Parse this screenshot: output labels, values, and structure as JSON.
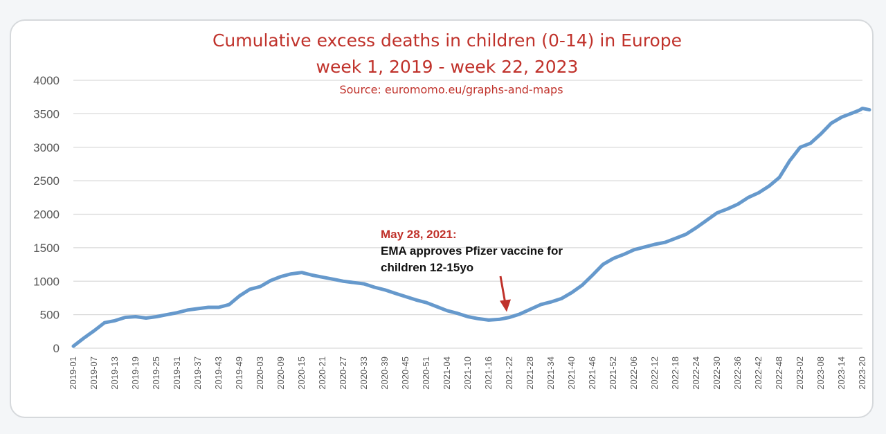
{
  "chart_data": {
    "type": "line",
    "title": "Cumulative excess deaths in children (0-14) in Europe",
    "subtitle": "week 1, 2019 - week 22, 2023",
    "source": "Source: euromomo.eu/graphs-and-maps",
    "xlabel": "",
    "ylabel": "",
    "ylim": [
      0,
      4000
    ],
    "yticks": [
      0,
      500,
      1000,
      1500,
      2000,
      2500,
      3000,
      3500,
      4000
    ],
    "grid": true,
    "legend": "none",
    "line_color": "#6699cc",
    "xticks": [
      "2019-01",
      "2019-07",
      "2019-13",
      "2019-19",
      "2019-25",
      "2019-31",
      "2019-37",
      "2019-43",
      "2019-49",
      "2020-03",
      "2020-09",
      "2020-15",
      "2020-21",
      "2020-27",
      "2020-33",
      "2020-39",
      "2020-45",
      "2020-51",
      "2021-04",
      "2021-10",
      "2021-16",
      "2021-22",
      "2021-28",
      "2021-34",
      "2021-40",
      "2021-46",
      "2021-52",
      "2022-06",
      "2022-12",
      "2022-18",
      "2022-24",
      "2022-30",
      "2022-36",
      "2022-42",
      "2022-48",
      "2023-02",
      "2023-08",
      "2023-14",
      "2023-20"
    ],
    "series": [
      {
        "values": [
          {
            "x": "2019-01",
            "y": 30
          },
          {
            "x": "2019-04",
            "y": 150
          },
          {
            "x": "2019-07",
            "y": 260
          },
          {
            "x": "2019-10",
            "y": 380
          },
          {
            "x": "2019-13",
            "y": 410
          },
          {
            "x": "2019-16",
            "y": 460
          },
          {
            "x": "2019-19",
            "y": 470
          },
          {
            "x": "2019-22",
            "y": 450
          },
          {
            "x": "2019-25",
            "y": 470
          },
          {
            "x": "2019-28",
            "y": 500
          },
          {
            "x": "2019-31",
            "y": 530
          },
          {
            "x": "2019-34",
            "y": 570
          },
          {
            "x": "2019-37",
            "y": 590
          },
          {
            "x": "2019-40",
            "y": 610
          },
          {
            "x": "2019-43",
            "y": 610
          },
          {
            "x": "2019-46",
            "y": 650
          },
          {
            "x": "2019-49",
            "y": 780
          },
          {
            "x": "2019-52",
            "y": 880
          },
          {
            "x": "2020-03",
            "y": 920
          },
          {
            "x": "2020-06",
            "y": 1010
          },
          {
            "x": "2020-09",
            "y": 1070
          },
          {
            "x": "2020-12",
            "y": 1110
          },
          {
            "x": "2020-15",
            "y": 1130
          },
          {
            "x": "2020-18",
            "y": 1090
          },
          {
            "x": "2020-21",
            "y": 1060
          },
          {
            "x": "2020-24",
            "y": 1030
          },
          {
            "x": "2020-27",
            "y": 1000
          },
          {
            "x": "2020-30",
            "y": 980
          },
          {
            "x": "2020-33",
            "y": 960
          },
          {
            "x": "2020-36",
            "y": 910
          },
          {
            "x": "2020-39",
            "y": 870
          },
          {
            "x": "2020-42",
            "y": 820
          },
          {
            "x": "2020-45",
            "y": 770
          },
          {
            "x": "2020-48",
            "y": 720
          },
          {
            "x": "2020-51",
            "y": 680
          },
          {
            "x": "2021-01",
            "y": 620
          },
          {
            "x": "2021-04",
            "y": 560
          },
          {
            "x": "2021-07",
            "y": 520
          },
          {
            "x": "2021-10",
            "y": 470
          },
          {
            "x": "2021-13",
            "y": 440
          },
          {
            "x": "2021-16",
            "y": 420
          },
          {
            "x": "2021-19",
            "y": 430
          },
          {
            "x": "2021-22",
            "y": 460
          },
          {
            "x": "2021-25",
            "y": 510
          },
          {
            "x": "2021-28",
            "y": 580
          },
          {
            "x": "2021-31",
            "y": 650
          },
          {
            "x": "2021-34",
            "y": 690
          },
          {
            "x": "2021-37",
            "y": 740
          },
          {
            "x": "2021-40",
            "y": 830
          },
          {
            "x": "2021-43",
            "y": 940
          },
          {
            "x": "2021-46",
            "y": 1090
          },
          {
            "x": "2021-49",
            "y": 1250
          },
          {
            "x": "2021-52",
            "y": 1340
          },
          {
            "x": "2022-03",
            "y": 1400
          },
          {
            "x": "2022-06",
            "y": 1470
          },
          {
            "x": "2022-09",
            "y": 1510
          },
          {
            "x": "2022-12",
            "y": 1550
          },
          {
            "x": "2022-15",
            "y": 1580
          },
          {
            "x": "2022-18",
            "y": 1640
          },
          {
            "x": "2022-21",
            "y": 1700
          },
          {
            "x": "2022-24",
            "y": 1800
          },
          {
            "x": "2022-27",
            "y": 1910
          },
          {
            "x": "2022-30",
            "y": 2020
          },
          {
            "x": "2022-33",
            "y": 2080
          },
          {
            "x": "2022-36",
            "y": 2150
          },
          {
            "x": "2022-39",
            "y": 2250
          },
          {
            "x": "2022-42",
            "y": 2320
          },
          {
            "x": "2022-45",
            "y": 2420
          },
          {
            "x": "2022-48",
            "y": 2550
          },
          {
            "x": "2022-51",
            "y": 2800
          },
          {
            "x": "2023-02",
            "y": 3000
          },
          {
            "x": "2023-05",
            "y": 3060
          },
          {
            "x": "2023-08",
            "y": 3200
          },
          {
            "x": "2023-11",
            "y": 3360
          },
          {
            "x": "2023-14",
            "y": 3450
          },
          {
            "x": "2023-17",
            "y": 3510
          },
          {
            "x": "2023-19",
            "y": 3550
          },
          {
            "x": "2023-20",
            "y": 3580
          },
          {
            "x": "2023-22",
            "y": 3560
          }
        ]
      }
    ],
    "annotation": {
      "date": "May 28, 2021:",
      "lines": [
        "EMA approves Pfizer vaccine for",
        "children 12-15yo"
      ],
      "arrow_color": "#c0322b",
      "target_x": "2021-21"
    }
  }
}
